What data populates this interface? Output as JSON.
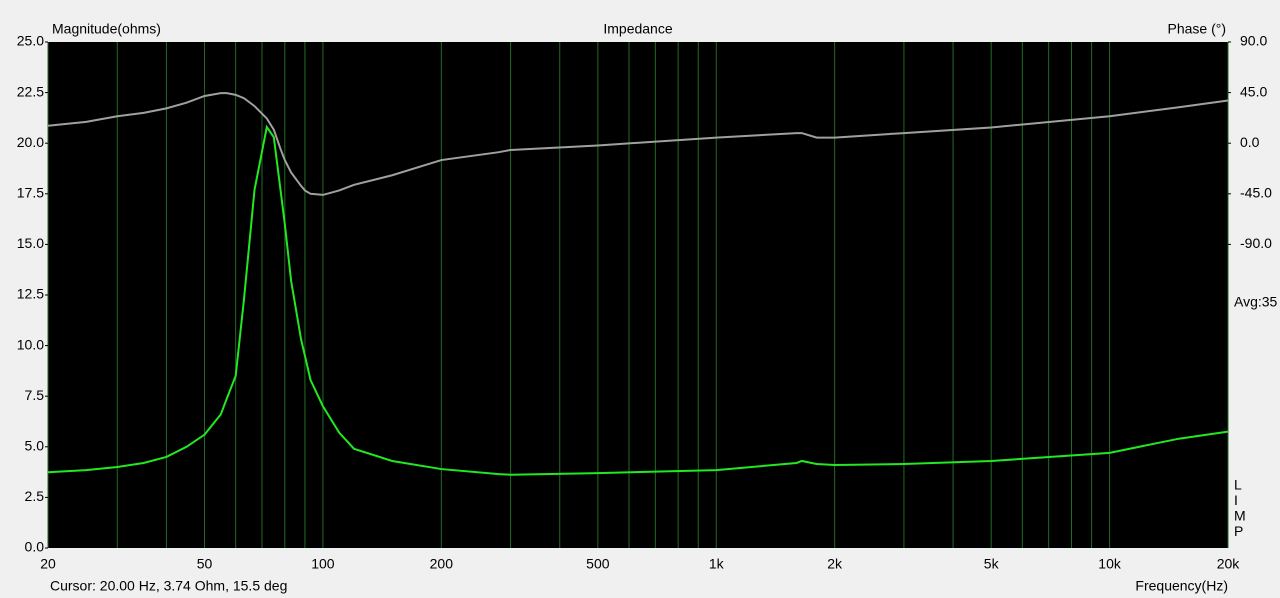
{
  "chart_data": {
    "type": "line",
    "title": "Impedance",
    "y_label": "Magnitude(ohms)",
    "y2_label": "Phase (°)",
    "x_label": "Frequency(Hz)",
    "cursor_text": "Cursor: 20.00 Hz, 3.74 Ohm, 15.5 deg",
    "avg_text": "Avg:35",
    "side_letters": [
      "L",
      "I",
      "M",
      "P"
    ],
    "x_scale": "log",
    "xlim": [
      20,
      20000
    ],
    "xticks": [
      20,
      50,
      100,
      200,
      500,
      {
        "value": 1000,
        "label": "1k"
      },
      {
        "value": 2000,
        "label": "2k"
      },
      {
        "value": 5000,
        "label": "5k"
      },
      {
        "value": 10000,
        "label": "10k"
      },
      {
        "value": 20000,
        "label": "20k"
      }
    ],
    "xminor_ticks": [
      30,
      40,
      60,
      70,
      80,
      90,
      300,
      400,
      600,
      700,
      800,
      900,
      3000,
      4000,
      6000,
      7000,
      8000,
      9000
    ],
    "ylim": [
      0,
      25
    ],
    "yticks": [
      {
        "value": 25,
        "label": "25.0"
      },
      {
        "value": 22.5,
        "label": "22.5"
      },
      {
        "value": 20,
        "label": "20.0"
      },
      {
        "value": 17.5,
        "label": "17.5"
      },
      {
        "value": 15,
        "label": "15.0"
      },
      {
        "value": 12.5,
        "label": "12.5"
      },
      {
        "value": 10,
        "label": "10.0"
      },
      {
        "value": 7.5,
        "label": "7.5"
      },
      {
        "value": 5,
        "label": "5.0"
      },
      {
        "value": 2.5,
        "label": "2.5"
      },
      {
        "value": 0,
        "label": "0.0"
      }
    ],
    "y2lim": [
      -360,
      90
    ],
    "y2ticks": [
      {
        "value": 90,
        "label": "90.0"
      },
      {
        "value": 45,
        "label": "45.0"
      },
      {
        "value": 0,
        "label": "0.0"
      },
      {
        "value": -45,
        "label": "-45.0"
      },
      {
        "value": -90,
        "label": "-90.0"
      }
    ],
    "grid": true,
    "grid_color": "#236b23",
    "x": [
      20,
      25,
      30,
      35,
      40,
      45,
      50,
      55,
      57,
      60,
      63,
      67,
      72,
      75,
      78,
      80,
      83,
      88,
      90,
      93,
      100,
      110,
      120,
      150,
      200,
      280,
      300,
      500,
      1000,
      1600,
      1650,
      1800,
      2000,
      3000,
      5000,
      10000,
      15000,
      20000
    ],
    "series": [
      {
        "color": "#22e822",
        "values": [
          3.74,
          3.85,
          4.0,
          4.2,
          4.5,
          5.0,
          5.6,
          6.6,
          7.4,
          8.5,
          12.3,
          17.7,
          20.8,
          20.3,
          17.7,
          16,
          13.2,
          10.3,
          9.5,
          8.3,
          7.0,
          5.7,
          4.9,
          4.3,
          3.9,
          3.65,
          3.62,
          3.7,
          3.85,
          4.2,
          4.3,
          4.15,
          4.1,
          4.15,
          4.3,
          4.7,
          5.4,
          5.75
        ]
      },
      {
        "color": "#a0a0a0",
        "axis": "y2",
        "values": [
          15.5,
          19,
          24,
          27,
          31,
          36,
          42,
          44.5,
          44.5,
          43,
          40,
          33,
          22,
          12,
          -5,
          -15,
          -26,
          -38,
          -42,
          -45,
          -46,
          -42,
          -37,
          -28.5,
          -15,
          -8,
          -6,
          -2,
          5,
          9,
          9,
          5,
          5,
          9,
          14,
          24,
          32,
          38
        ]
      }
    ]
  }
}
